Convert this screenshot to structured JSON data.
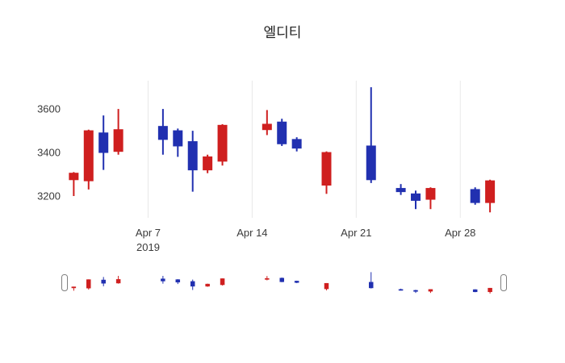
{
  "chart_data": {
    "type": "candlestick",
    "title": "엘디티",
    "up_color": "#cf1f1f",
    "down_color": "#2130b0",
    "grid_color": "#e8e8e8",
    "handle_border_color": "#7f7f7f",
    "yticks": [
      3200,
      3400,
      3600
    ],
    "xticks": [
      {
        "label": "Apr 7",
        "sub": "2019",
        "day": 7
      },
      {
        "label": "Apr 14",
        "day": 14
      },
      {
        "label": "Apr 21",
        "day": 21
      },
      {
        "label": "Apr 28",
        "day": 28
      }
    ],
    "x_range_days": [
      1.6,
      30.7
    ],
    "y_range": [
      3100,
      3730
    ],
    "legend": "none",
    "grid": "vertical-weekly",
    "candles": [
      {
        "date": "2019-04-02",
        "open": 3275,
        "high": 3310,
        "low": 3200,
        "close": 3305
      },
      {
        "date": "2019-04-03",
        "open": 3270,
        "high": 3505,
        "low": 3230,
        "close": 3500
      },
      {
        "date": "2019-04-04",
        "open": 3490,
        "high": 3570,
        "low": 3320,
        "close": 3400
      },
      {
        "date": "2019-04-05",
        "open": 3405,
        "high": 3600,
        "low": 3390,
        "close": 3505
      },
      {
        "date": "2019-04-08",
        "open": 3520,
        "high": 3600,
        "low": 3390,
        "close": 3460
      },
      {
        "date": "2019-04-09",
        "open": 3500,
        "high": 3510,
        "low": 3380,
        "close": 3430
      },
      {
        "date": "2019-04-10",
        "open": 3450,
        "high": 3500,
        "low": 3220,
        "close": 3320
      },
      {
        "date": "2019-04-11",
        "open": 3320,
        "high": 3390,
        "low": 3305,
        "close": 3380
      },
      {
        "date": "2019-04-12",
        "open": 3360,
        "high": 3530,
        "low": 3340,
        "close": 3525
      },
      {
        "date": "2019-04-15",
        "open": 3505,
        "high": 3595,
        "low": 3480,
        "close": 3530
      },
      {
        "date": "2019-04-16",
        "open": 3540,
        "high": 3555,
        "low": 3430,
        "close": 3440
      },
      {
        "date": "2019-04-17",
        "open": 3460,
        "high": 3470,
        "low": 3405,
        "close": 3420
      },
      {
        "date": "2019-04-19",
        "open": 3250,
        "high": 3405,
        "low": 3210,
        "close": 3400
      },
      {
        "date": "2019-04-22",
        "open": 3430,
        "high": 3700,
        "low": 3260,
        "close": 3275
      },
      {
        "date": "2019-04-24",
        "open": 3235,
        "high": 3255,
        "low": 3205,
        "close": 3220
      },
      {
        "date": "2019-04-25",
        "open": 3210,
        "high": 3225,
        "low": 3140,
        "close": 3180
      },
      {
        "date": "2019-04-26",
        "open": 3185,
        "high": 3240,
        "low": 3140,
        "close": 3235
      },
      {
        "date": "2019-04-29",
        "open": 3230,
        "high": 3240,
        "low": 3160,
        "close": 3170
      },
      {
        "date": "2019-04-30",
        "open": 3170,
        "high": 3275,
        "low": 3125,
        "close": 3270
      }
    ]
  }
}
